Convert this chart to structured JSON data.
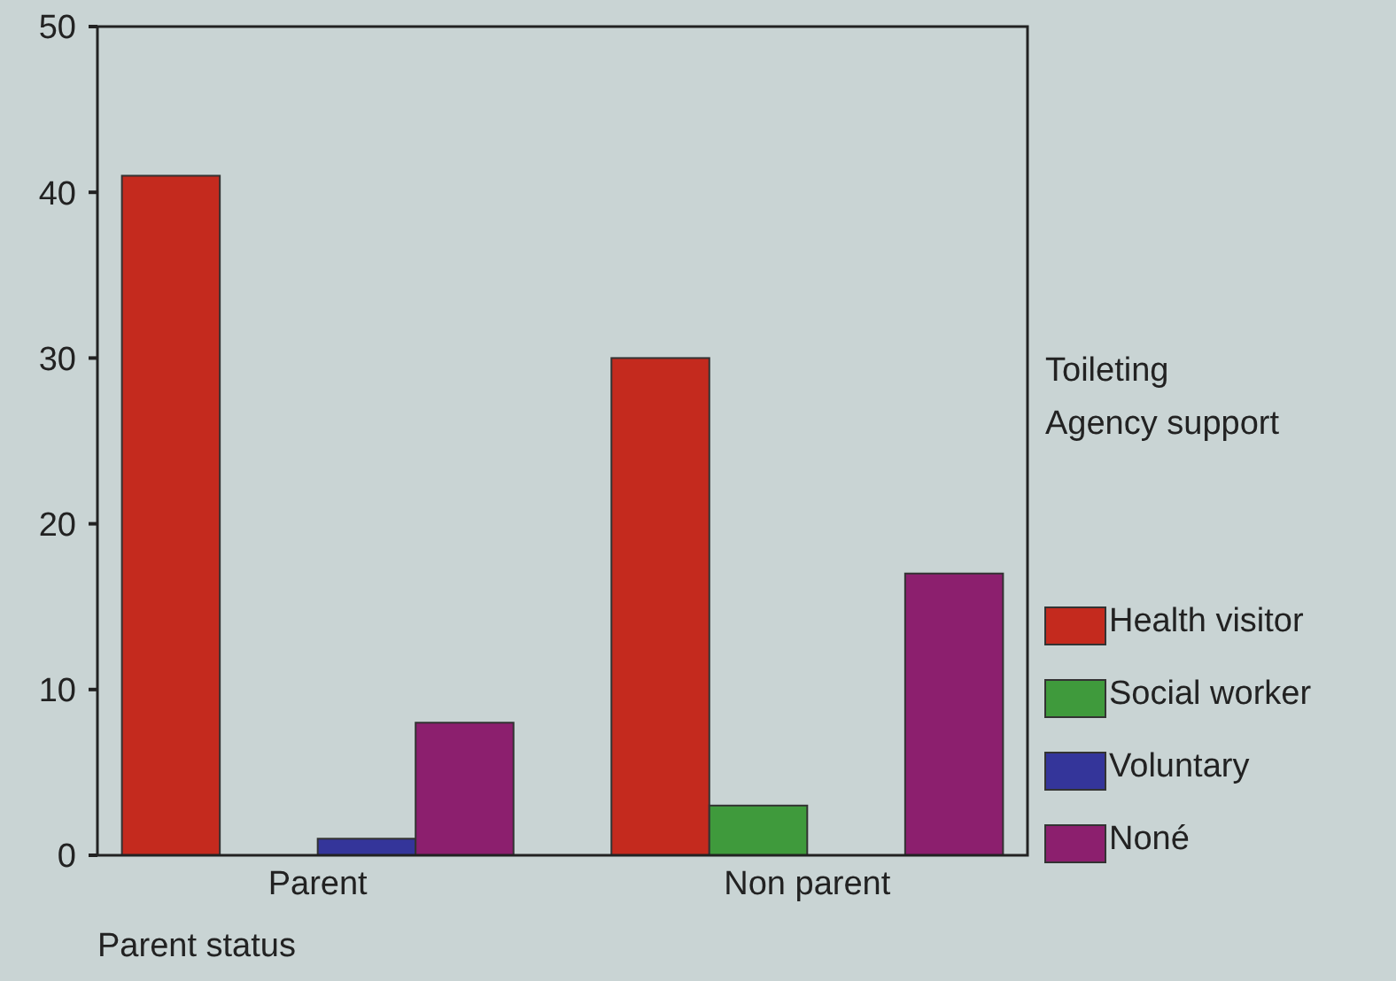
{
  "chart_data": {
    "type": "bar",
    "xlabel": "Parent status",
    "legend_title": "Toileting\nAgency support",
    "categories": [
      "Parent",
      "Non parent"
    ],
    "series": [
      {
        "name": "Health visitor",
        "color": "#c42a1e",
        "values": [
          41,
          30
        ]
      },
      {
        "name": "Social worker",
        "color": "#3f9a3c",
        "values": [
          0,
          3
        ]
      },
      {
        "name": "Voluntary",
        "color": "#34359a",
        "values": [
          1,
          0
        ]
      },
      {
        "name": "Noné",
        "color": "#8c1f6e",
        "values": [
          8,
          17
        ]
      }
    ],
    "ylim": [
      0,
      50
    ],
    "yticks": [
      0,
      10,
      20,
      30,
      40,
      50
    ],
    "grid": false,
    "legend": "right"
  }
}
